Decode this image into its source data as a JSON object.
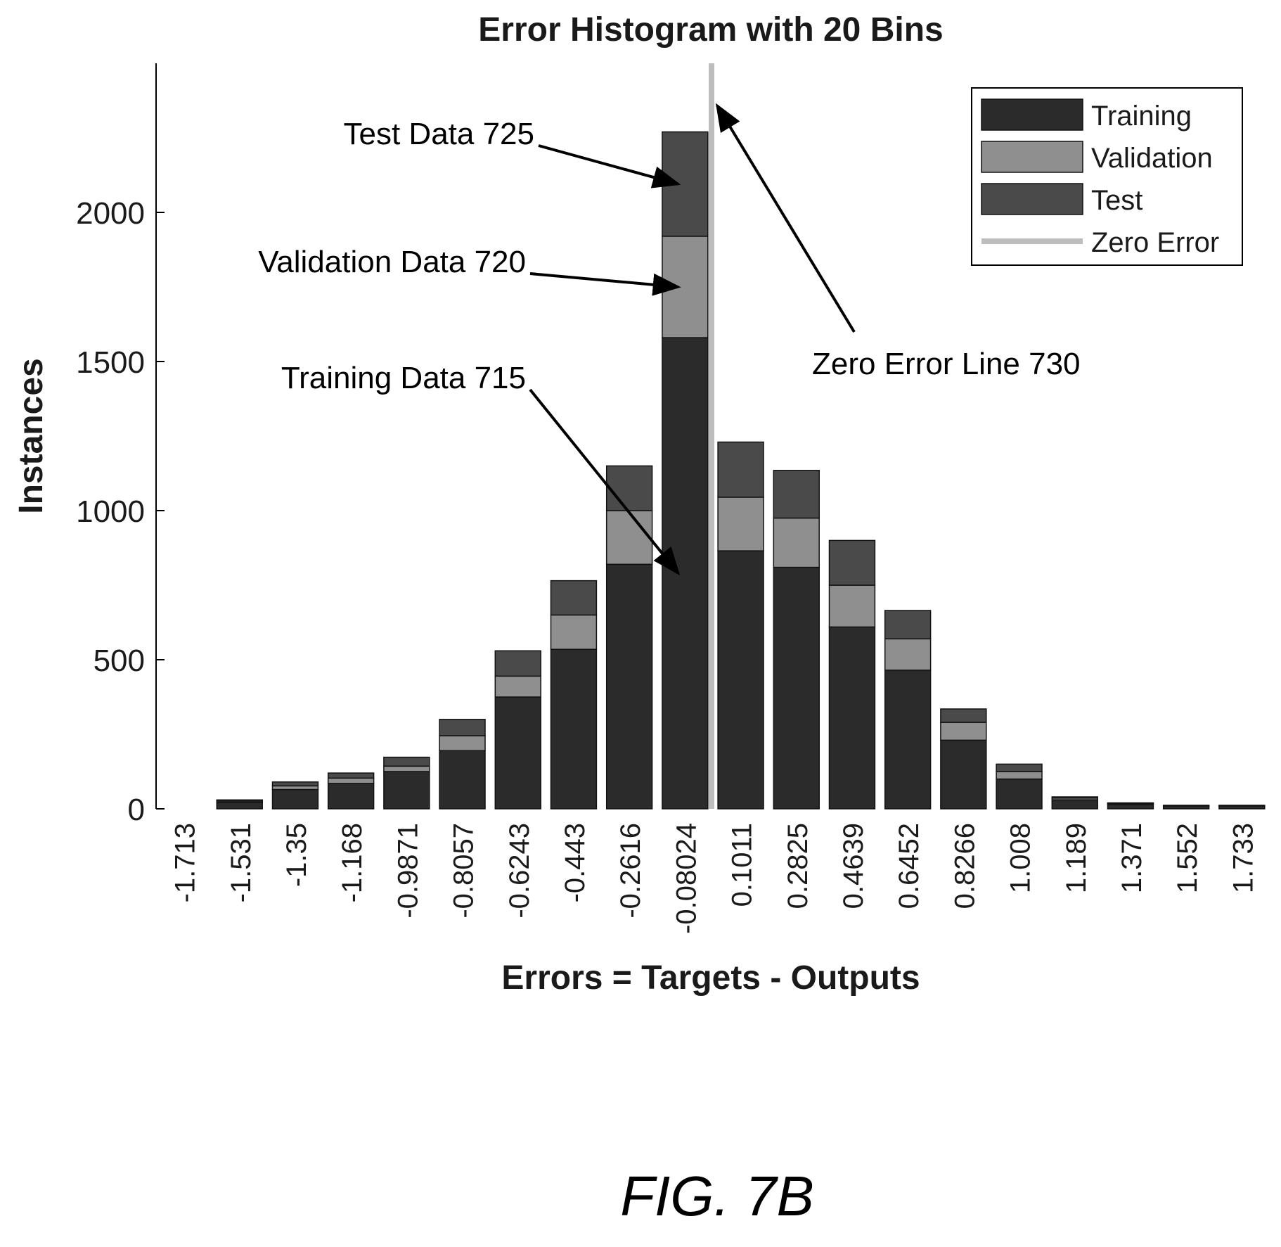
{
  "chart_data": {
    "type": "bar",
    "stacked": true,
    "title": "Error Histogram with 20 Bins",
    "xlabel": "Errors = Targets - Outputs",
    "ylabel": "Instances",
    "ylim": [
      0,
      2500
    ],
    "yticks": [
      0,
      500,
      1000,
      1500,
      2000
    ],
    "ytick_labels": [
      "0",
      "500",
      "1000",
      "1500",
      "2000"
    ],
    "categories": [
      "-1.713",
      "-1.531",
      "-1.35",
      "-1.168",
      "-0.9871",
      "-0.8057",
      "-0.6243",
      "-0.443",
      "-0.2616",
      "-0.08024",
      "0.1011",
      "0.2825",
      "0.4639",
      "0.6452",
      "0.8266",
      "1.008",
      "1.189",
      "1.371",
      "1.552",
      "1.733"
    ],
    "series": [
      {
        "name": "Training",
        "color": "#2b2b2b",
        "values": [
          0,
          22,
          65,
          85,
          125,
          195,
          375,
          535,
          820,
          1580,
          865,
          810,
          610,
          465,
          230,
          100,
          30,
          15,
          10,
          10
        ]
      },
      {
        "name": "Validation",
        "color": "#8f8f8f",
        "values": [
          0,
          4,
          12,
          18,
          18,
          50,
          70,
          115,
          180,
          340,
          180,
          165,
          140,
          105,
          60,
          25,
          6,
          4,
          2,
          2
        ]
      },
      {
        "name": "Test",
        "color": "#4a4a4a",
        "values": [
          0,
          4,
          13,
          17,
          30,
          55,
          85,
          115,
          150,
          350,
          185,
          160,
          150,
          95,
          45,
          25,
          4,
          1,
          0,
          0
        ]
      }
    ],
    "zero_error_line": {
      "name": "Zero Error",
      "color": "#bdbdbd",
      "x_between_bins": [
        9,
        10
      ]
    },
    "legend": {
      "placement": "top-right",
      "entries": [
        "Training",
        "Validation",
        "Test",
        "Zero Error"
      ]
    },
    "annotations": [
      {
        "text": "Test Data 725",
        "target_series": "Test",
        "target_bin": 9
      },
      {
        "text": "Validation Data 720",
        "target_series": "Validation",
        "target_bin": 9
      },
      {
        "text": "Training Data 715",
        "target_series": "Training",
        "target_bin": 9
      },
      {
        "text": "Zero Error Line 730",
        "target": "zero_error_line"
      }
    ],
    "grid": false
  },
  "figure_label": "FIG. 7B"
}
